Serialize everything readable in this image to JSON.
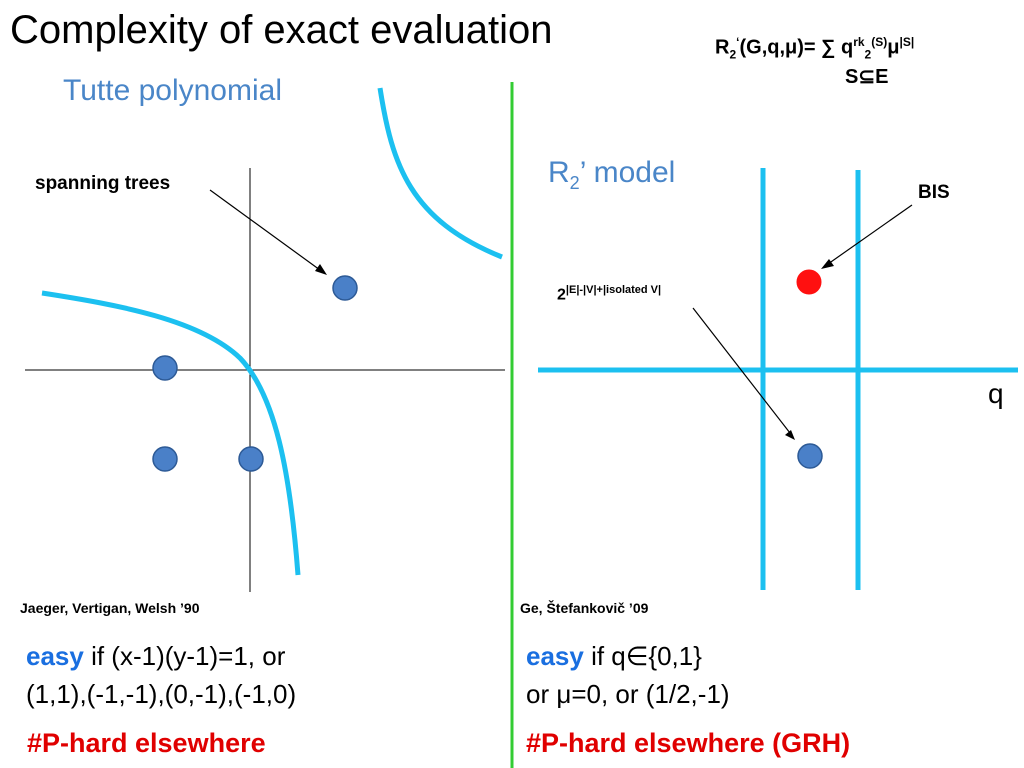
{
  "title": "Complexity of exact evaluation",
  "formula": {
    "r": "R",
    "sub2": "2",
    "prime": "‘",
    "args": "(G,q,μ)= ∑ q",
    "sup_rk": "rk",
    "sub_rk": "2",
    "sup_s": "(S)",
    "mu": "μ",
    "sup_abs": "|S|",
    "under": "S⊆E"
  },
  "left_panel": {
    "heading": "Tutte polynomial",
    "spanning_label": "spanning trees",
    "citation": "Jaeger, Vertigan, Welsh ’90",
    "easy_word": "easy",
    "easy_line1": " if (x-1)(y-1)=1, or",
    "easy_line2": "(1,1),(-1,-1),(0,-1),(-1,0)",
    "hard": "#P-hard elsewhere"
  },
  "right_panel": {
    "heading_r": "R",
    "heading_sub": "2",
    "heading_prime": "’",
    "heading_rest": " model",
    "bis_label": "BIS",
    "iso_base": "2",
    "iso_exp": "|E|-|V|+|isolated V|",
    "q_label": "q",
    "citation": "Ge, Štefankovič ’09",
    "easy_word": "easy",
    "easy_line1": " if q∈{0,1}",
    "easy_line2": "or μ=0, or (1/2,-1)",
    "hard": "#P-hard elsewhere (GRH)"
  },
  "colors": {
    "curve": "#1cc0f0",
    "divider": "#33cc33",
    "point": "#4a80c8",
    "bis_point": "#ff1010",
    "easy": "#1a6fe0",
    "hard": "#e00000",
    "heading": "#4a86c8"
  }
}
